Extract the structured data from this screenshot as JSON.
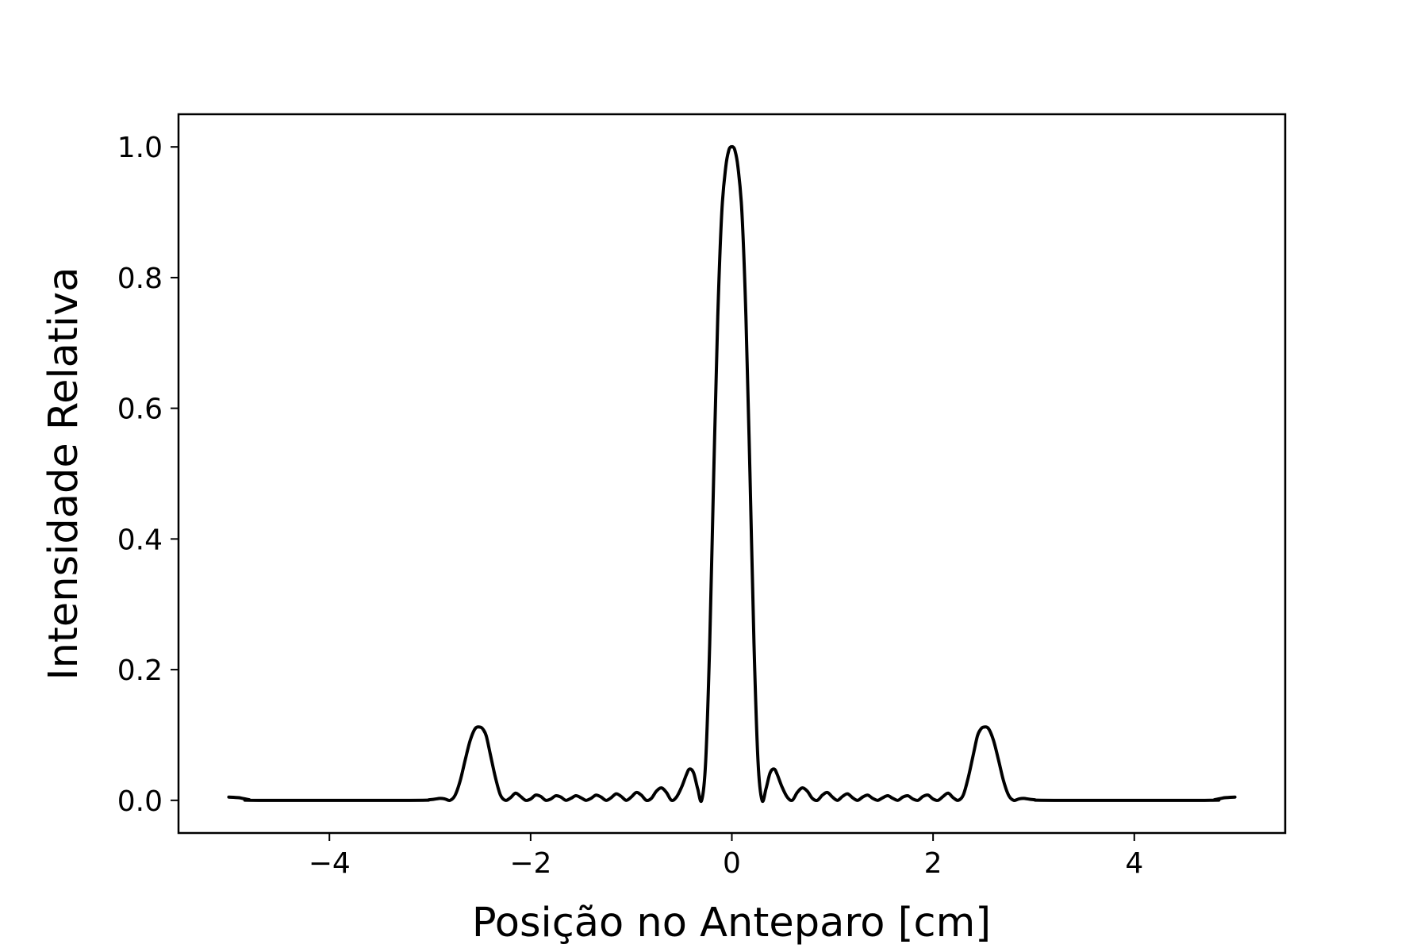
{
  "chart_data": {
    "type": "line",
    "title": "",
    "xlabel": "Posição no Anteparo [cm]",
    "ylabel": "Intensidade Relativa",
    "xlim": [
      -5.5,
      5.5
    ],
    "ylim": [
      -0.05,
      1.05
    ],
    "xticks": [
      {
        "value": -4,
        "label": "−4"
      },
      {
        "value": -2,
        "label": "−2"
      },
      {
        "value": 0,
        "label": "0"
      },
      {
        "value": 2,
        "label": "2"
      },
      {
        "value": 4,
        "label": "4"
      }
    ],
    "yticks": [
      {
        "value": 0.0,
        "label": "0.0"
      },
      {
        "value": 0.2,
        "label": "0.2"
      },
      {
        "value": 0.4,
        "label": "0.4"
      },
      {
        "value": 0.6,
        "label": "0.6"
      },
      {
        "value": 0.8,
        "label": "0.8"
      },
      {
        "value": 1.0,
        "label": "1.0"
      }
    ],
    "grid": false,
    "line_color": "#000000",
    "series": [
      {
        "x": [
          -5.0,
          -4.9,
          -4.8,
          -4.7,
          -3.2,
          -3.0,
          -2.9,
          -2.85,
          -2.8,
          -2.75,
          -2.7,
          -2.65,
          -2.6,
          -2.55,
          -2.5,
          -2.47,
          -2.44,
          -2.4,
          -2.35,
          -2.3,
          -2.25,
          -2.2,
          -2.15,
          -2.1,
          -2.05,
          -2.0,
          -1.95,
          -1.9,
          -1.85,
          -1.8,
          -1.75,
          -1.7,
          -1.65,
          -1.6,
          -1.55,
          -1.5,
          -1.45,
          -1.4,
          -1.35,
          -1.3,
          -1.25,
          -1.2,
          -1.15,
          -1.1,
          -1.05,
          -1.0,
          -0.95,
          -0.9,
          -0.85,
          -0.8,
          -0.75,
          -0.7,
          -0.65,
          -0.6,
          -0.55,
          -0.5,
          -0.45,
          -0.42,
          -0.38,
          -0.34,
          -0.3,
          -0.26,
          -0.22,
          -0.18,
          -0.14,
          -0.1,
          -0.06,
          -0.03,
          -0.01,
          0.0,
          0.01,
          0.03,
          0.06,
          0.1,
          0.14,
          0.18,
          0.22,
          0.26,
          0.3,
          0.34,
          0.38,
          0.42,
          0.45,
          0.5,
          0.55,
          0.6,
          0.65,
          0.7,
          0.75,
          0.8,
          0.85,
          0.9,
          0.95,
          1.0,
          1.05,
          1.1,
          1.15,
          1.2,
          1.25,
          1.3,
          1.35,
          1.4,
          1.45,
          1.5,
          1.55,
          1.6,
          1.65,
          1.7,
          1.75,
          1.8,
          1.85,
          1.9,
          1.95,
          2.0,
          2.05,
          2.1,
          2.15,
          2.2,
          2.25,
          2.3,
          2.35,
          2.4,
          2.44,
          2.47,
          2.5,
          2.55,
          2.6,
          2.65,
          2.7,
          2.75,
          2.8,
          2.85,
          2.9,
          3.0,
          3.2,
          4.7,
          4.8,
          4.9,
          5.0
        ],
        "y": [
          0.005,
          0.004,
          0.001,
          0.0,
          0.0,
          0.001,
          0.003,
          0.002,
          0.0,
          0.008,
          0.03,
          0.062,
          0.092,
          0.11,
          0.112,
          0.108,
          0.098,
          0.07,
          0.035,
          0.008,
          0.0,
          0.004,
          0.011,
          0.006,
          0.0,
          0.002,
          0.008,
          0.006,
          0.0,
          0.002,
          0.007,
          0.005,
          0.0,
          0.003,
          0.007,
          0.004,
          0.0,
          0.003,
          0.008,
          0.005,
          0.0,
          0.004,
          0.01,
          0.006,
          0.0,
          0.005,
          0.012,
          0.008,
          0.0,
          0.003,
          0.014,
          0.019,
          0.012,
          0.0,
          0.005,
          0.02,
          0.04,
          0.048,
          0.042,
          0.018,
          0.0,
          0.06,
          0.24,
          0.5,
          0.74,
          0.9,
          0.97,
          0.995,
          1.0,
          1.0,
          1.0,
          0.995,
          0.97,
          0.9,
          0.74,
          0.5,
          0.24,
          0.06,
          0.0,
          0.018,
          0.042,
          0.048,
          0.04,
          0.02,
          0.005,
          0.0,
          0.012,
          0.019,
          0.014,
          0.003,
          0.0,
          0.008,
          0.012,
          0.005,
          0.0,
          0.006,
          0.01,
          0.004,
          0.0,
          0.005,
          0.008,
          0.003,
          0.0,
          0.004,
          0.007,
          0.003,
          0.0,
          0.005,
          0.007,
          0.002,
          0.0,
          0.006,
          0.008,
          0.002,
          0.0,
          0.006,
          0.011,
          0.004,
          0.0,
          0.008,
          0.035,
          0.07,
          0.098,
          0.108,
          0.112,
          0.11,
          0.092,
          0.062,
          0.03,
          0.008,
          0.0,
          0.002,
          0.003,
          0.001,
          0.0,
          0.0,
          0.001,
          0.004,
          0.005
        ]
      }
    ]
  }
}
